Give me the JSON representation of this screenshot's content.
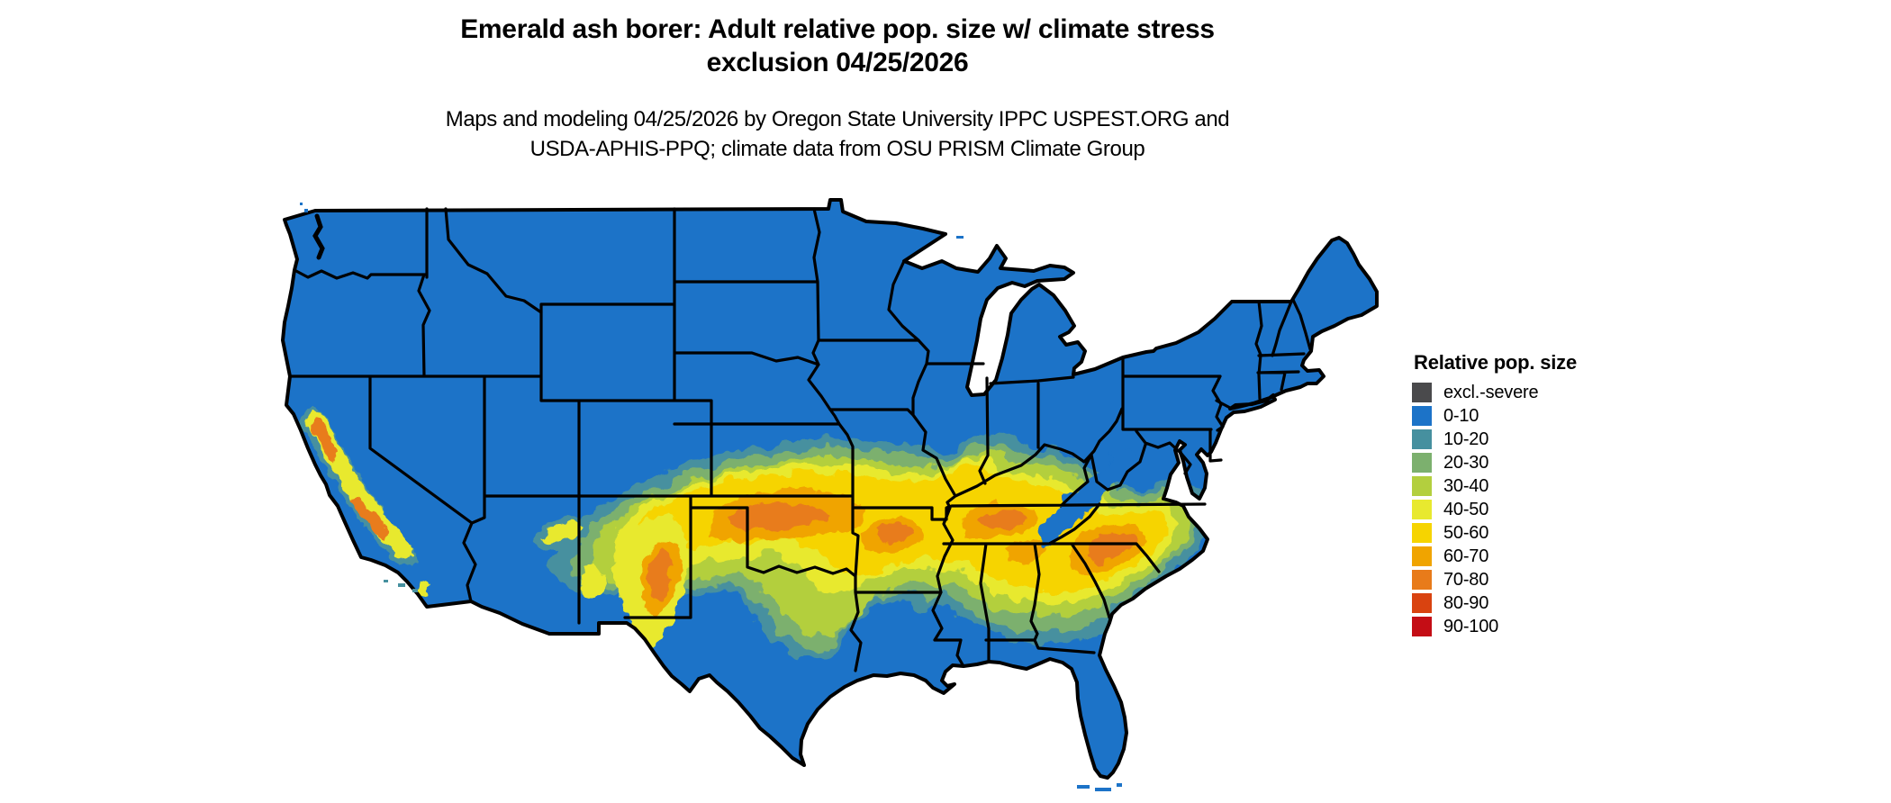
{
  "title": {
    "line1": "Emerald ash borer: Adult relative pop. size w/ climate stress",
    "line2": "exclusion 04/25/2026"
  },
  "subtitle": {
    "line1": "Maps and modeling 04/25/2026 by Oregon State University IPPC USPEST.ORG and",
    "line2": "USDA-APHIS-PPQ; climate data from OSU PRISM Climate Group"
  },
  "legend": {
    "title": "Relative pop. size",
    "items": [
      {
        "label": "excl.-severe",
        "color": "#4a4a4c"
      },
      {
        "label": "0-10",
        "color": "#1c73c8"
      },
      {
        "label": "10-20",
        "color": "#46909f"
      },
      {
        "label": "20-30",
        "color": "#7cb06e"
      },
      {
        "label": "30-40",
        "color": "#b3cf3e"
      },
      {
        "label": "40-50",
        "color": "#e8e92f"
      },
      {
        "label": "50-60",
        "color": "#f6d400"
      },
      {
        "label": "60-70",
        "color": "#f0a400"
      },
      {
        "label": "70-80",
        "color": "#e87b1a"
      },
      {
        "label": "80-90",
        "color": "#d94310"
      },
      {
        "label": "90-100",
        "color": "#c40d15"
      }
    ]
  },
  "map": {
    "background": "#ffffff",
    "border_color": "#000000",
    "region_colors": {
      "c_excl": "#4a4a4c",
      "c0_10": "#1c73c8",
      "c10_20": "#46909f",
      "c20_30": "#7cb06e",
      "c30_40": "#b3cf3e",
      "c40_50": "#e8e92f",
      "c50_60": "#f6d400",
      "c60_70": "#f0a400",
      "c70_80": "#e87b1a",
      "c80_90": "#d94310",
      "c90_100": "#c40d15"
    }
  }
}
